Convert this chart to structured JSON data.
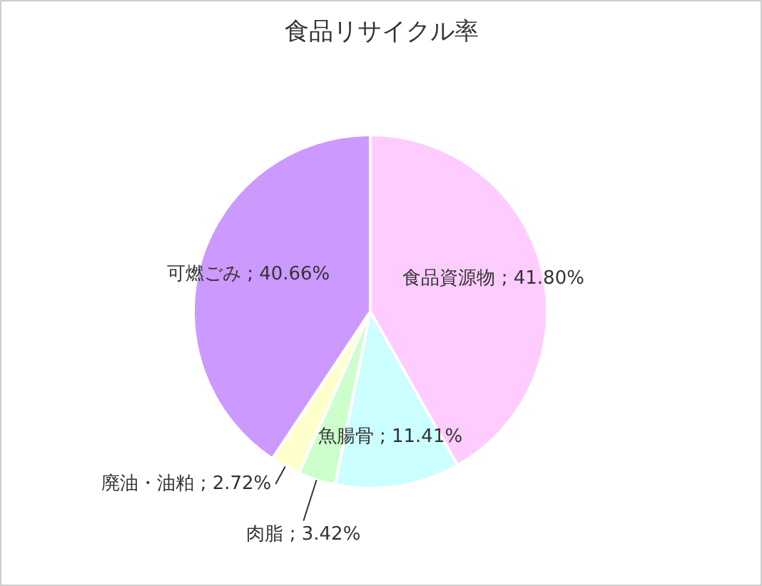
{
  "chart_data": {
    "type": "pie",
    "title": "食品リサイクル率",
    "categories": [
      "食品資源物",
      "魚腸骨",
      "肉脂",
      "廃油・油粕",
      "可燃ごみ"
    ],
    "values": [
      41.8,
      11.41,
      3.42,
      2.72,
      40.66
    ],
    "value_labels": [
      "41.80%",
      "11.41%",
      "3.42%",
      "2.72%",
      "40.66%"
    ],
    "colors": [
      "#ffccff",
      "#ccffff",
      "#ccffcc",
      "#ffffcc",
      "#cc99ff"
    ]
  }
}
